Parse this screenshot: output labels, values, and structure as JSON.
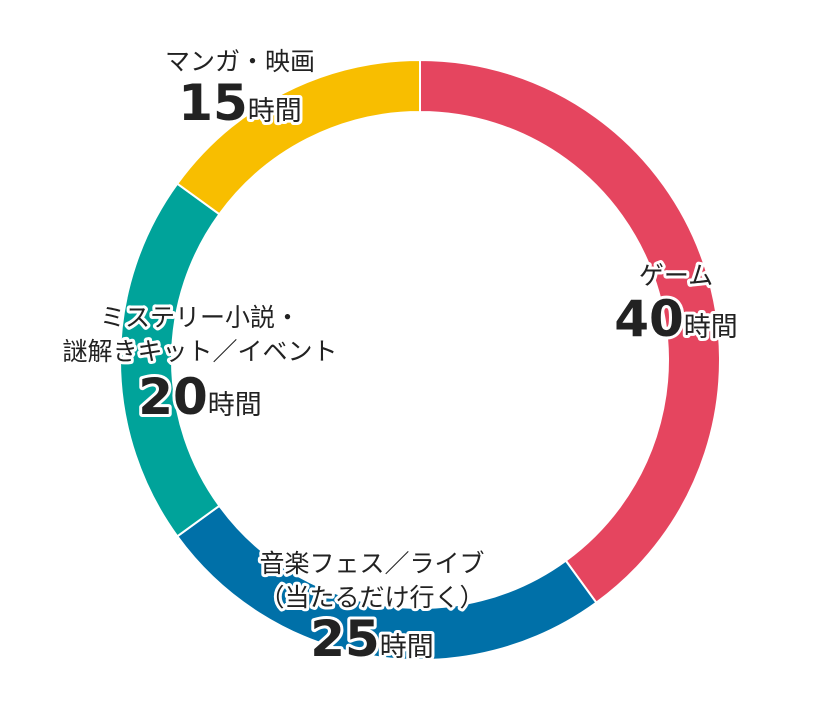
{
  "chart_data": {
    "type": "pie",
    "donut": true,
    "unit": "時間",
    "slices": [
      {
        "label": [
          "ゲーム"
        ],
        "value": 40,
        "color": "#E5455F"
      },
      {
        "label": [
          "音楽フェス／ライブ",
          "（当たるだけ行く）"
        ],
        "value": 25,
        "color": "#0070A8"
      },
      {
        "label": [
          "ミステリー小説・",
          "謎解きキット／イベント"
        ],
        "value": 20,
        "color": "#00A39A"
      },
      {
        "label": [
          "マンガ・映画"
        ],
        "value": 15,
        "color": "#F8BE00"
      }
    ]
  }
}
